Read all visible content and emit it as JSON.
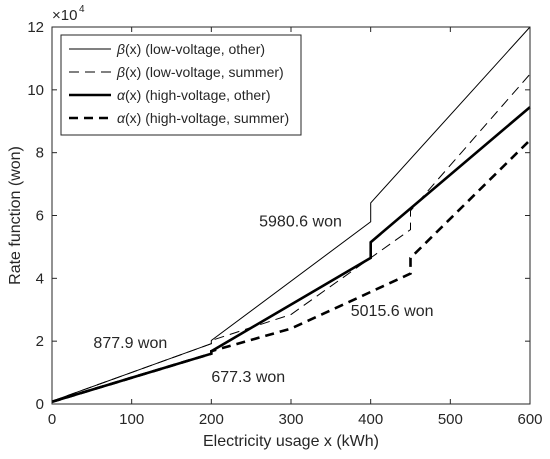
{
  "chart_data": {
    "type": "line",
    "xlabel": "Electricity usage x (kWh)",
    "ylabel": "Rate function (won)",
    "xlim": [
      0,
      600
    ],
    "ylim": [
      0,
      120000
    ],
    "x_ticks": [
      0,
      100,
      200,
      300,
      400,
      500,
      600
    ],
    "y_ticks": [
      0,
      20000,
      40000,
      60000,
      80000,
      100000,
      120000
    ],
    "y_tick_labels": [
      "0",
      "2",
      "4",
      "6",
      "8",
      "10",
      "12"
    ],
    "y_multiplier": {
      "base": "×10",
      "exponent": "4"
    },
    "grid": false,
    "legend_position": "top-left",
    "series": [
      {
        "name_symbol": "β",
        "name_rest": "(x) (low-voltage, other)",
        "line": "thin-solid",
        "color": "#000000",
        "points": [
          [
            0,
            900
          ],
          [
            200,
            19200
          ],
          [
            200,
            20200
          ],
          [
            400,
            58000
          ],
          [
            400,
            64000
          ],
          [
            600,
            120000
          ]
        ]
      },
      {
        "name_symbol": "β",
        "name_rest": "(x) (low-voltage, summer)",
        "line": "thin-dashed",
        "color": "#000000",
        "points": [
          [
            0,
            900
          ],
          [
            200,
            19200
          ],
          [
            200,
            20200
          ],
          [
            300,
            28500
          ],
          [
            450,
            55500
          ],
          [
            450,
            61500
          ],
          [
            600,
            105000
          ]
        ]
      },
      {
        "name_symbol": "α",
        "name_rest": "(x) (high-voltage, other)",
        "line": "thick-solid",
        "color": "#000000",
        "points": [
          [
            0,
            700
          ],
          [
            200,
            16000
          ],
          [
            200,
            16800
          ],
          [
            400,
            46500
          ],
          [
            400,
            51500
          ],
          [
            600,
            94500
          ]
        ]
      },
      {
        "name_symbol": "α",
        "name_rest": "(x) (high-voltage, summer)",
        "line": "thick-dashed",
        "color": "#000000",
        "points": [
          [
            0,
            700
          ],
          [
            200,
            16000
          ],
          [
            200,
            16800
          ],
          [
            300,
            24000
          ],
          [
            450,
            41500
          ],
          [
            450,
            46500
          ],
          [
            600,
            84000
          ]
        ]
      }
    ],
    "annotations": [
      {
        "text": "877.9 won",
        "x": 52,
        "y": 17800
      },
      {
        "text": "677.3 won",
        "x": 200,
        "y": 7000
      },
      {
        "text": "5980.6 won",
        "x": 260,
        "y": 56500
      },
      {
        "text": "5015.6 won",
        "x": 375,
        "y": 28000
      }
    ]
  }
}
